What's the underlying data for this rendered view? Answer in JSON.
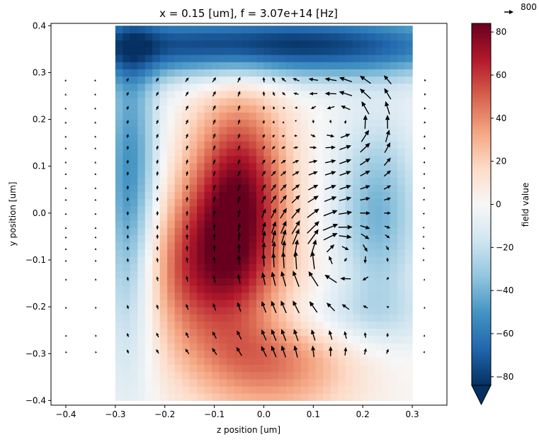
{
  "chart_data": {
    "type": "heatmap",
    "title": "x = 0.15 [um], f = 3.07e+14 [Hz]",
    "xlabel": "z position [um]",
    "ylabel": "y position [um]",
    "xlim": [
      -0.43,
      0.37
    ],
    "ylim": [
      -0.41,
      0.405
    ],
    "x_ticks": [
      -0.4,
      -0.3,
      -0.2,
      -0.1,
      0.0,
      0.1,
      0.2,
      0.3
    ],
    "x_tick_labels": [
      "−0.4",
      "−0.3",
      "−0.2",
      "−0.1",
      "0.0",
      "0.1",
      "0.2",
      "0.3"
    ],
    "y_ticks": [
      -0.4,
      -0.3,
      -0.2,
      -0.1,
      0.0,
      0.1,
      0.2,
      0.3,
      0.4
    ],
    "y_tick_labels": [
      "−0.4",
      "−0.3",
      "−0.2",
      "−0.1",
      "0.0",
      "0.1",
      "0.2",
      "0.3",
      "0.4"
    ],
    "grid": false,
    "heatmap_extent": {
      "z": [
        -0.3,
        0.3
      ],
      "y": [
        -0.4,
        0.4
      ]
    },
    "heatmap_features": [
      {
        "kind": "hot",
        "z": -0.05,
        "y": 0.02,
        "sz": 0.07,
        "sy": 0.16,
        "value": 80
      },
      {
        "kind": "hot",
        "z": -0.15,
        "y": -0.12,
        "sz": 0.08,
        "sy": 0.12,
        "value": 45
      },
      {
        "kind": "hot",
        "z": 0.02,
        "y": -0.3,
        "sz": 0.12,
        "sy": 0.1,
        "value": 45
      },
      {
        "kind": "cold",
        "z": 0.0,
        "y": 0.36,
        "sz": 0.35,
        "sy": 0.05,
        "value": -85
      },
      {
        "kind": "cold",
        "z": -0.27,
        "y": 0.05,
        "sz": 0.04,
        "sy": 0.25,
        "value": -55
      },
      {
        "kind": "cold",
        "z": 0.23,
        "y": 0.0,
        "sz": 0.06,
        "sy": 0.14,
        "value": -40
      },
      {
        "kind": "cold",
        "z": 0.12,
        "y": -0.22,
        "sz": 0.15,
        "sy": 0.05,
        "value": -25
      }
    ],
    "colorbar": {
      "label": "field value",
      "colormap": "RdBu_r",
      "range": [
        -84,
        84
      ],
      "ticks": [
        -80,
        -60,
        -40,
        -20,
        0,
        20,
        40,
        60,
        80
      ],
      "tick_labels": [
        "−80",
        "−60",
        "−40",
        "−20",
        "0",
        "20",
        "40",
        "60",
        "80"
      ],
      "extend": "min"
    },
    "quiver": {
      "key_label": "800",
      "z": [
        -0.4,
        -0.34,
        -0.275,
        -0.215,
        -0.155,
        -0.1,
        -0.05,
        0.0,
        0.02,
        0.04,
        0.065,
        0.1,
        0.135,
        0.165,
        0.205,
        0.25,
        0.325
      ],
      "y": [
        0.285,
        0.255,
        0.225,
        0.195,
        0.165,
        0.14,
        0.11,
        0.085,
        0.055,
        0.03,
        0.0,
        -0.03,
        -0.05,
        -0.075,
        -0.1,
        -0.14,
        -0.2,
        -0.26,
        -0.295
      ],
      "field_model": {
        "vortices": [
          {
            "z": 0.17,
            "y": 0.2,
            "strength": 2000,
            "rotation": "ccw"
          },
          {
            "z": 0.14,
            "y": -0.09,
            "strength": 2500,
            "rotation": "cw"
          }
        ],
        "sources": [
          {
            "z": 0.01,
            "y": 0.36,
            "strength": -1500
          },
          {
            "z": 0.07,
            "y": -0.42,
            "strength": 2500
          }
        ],
        "uniform_vy": 80
      }
    }
  }
}
